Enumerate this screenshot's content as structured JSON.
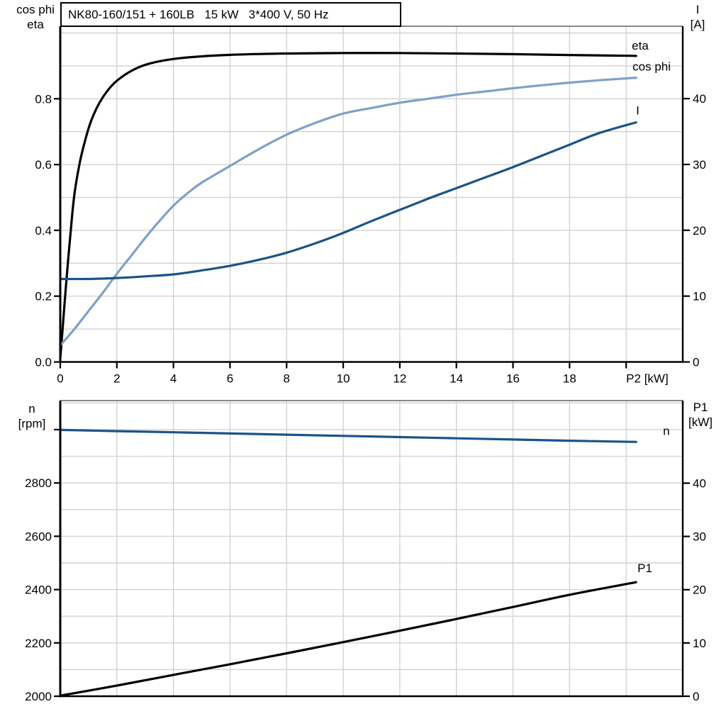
{
  "page": {
    "background": "#ffffff"
  },
  "title_box": {
    "text": "NK80-160/151 + 160LB   15 kW   3*400 V, 50 Hz"
  },
  "colors": {
    "black": "#000000",
    "light_blue": "#7fa1c6",
    "dark_blue": "#1a5488",
    "grid": "#d2d2d2",
    "frame_gray": "#888888",
    "axis": "#000000",
    "text": "#000000"
  },
  "chart_data": [
    {
      "id": "electrical-curves",
      "type": "line",
      "title": "NK80-160/151 + 160LB   15 kW   3*400 V, 50 Hz",
      "x_axis": {
        "label": "P2 [kW]",
        "range": [
          0,
          22.0
        ],
        "tick_values": [
          0,
          2,
          4,
          6,
          8,
          10,
          12,
          14,
          16,
          18
        ],
        "tick_labels": [
          "0",
          "2",
          "4",
          "6",
          "8",
          "10",
          "12",
          "14",
          "16",
          "18"
        ],
        "extra_tick_values": [
          20
        ],
        "grid_values": [
          2,
          4,
          6,
          8,
          10,
          12,
          14,
          16,
          18,
          20
        ],
        "label_at_value": 20
      },
      "left_axis": {
        "label_lines": [
          "cos phi",
          "eta"
        ],
        "range": [
          0,
          1.0205
        ],
        "tick_values": [
          0,
          0.2,
          0.4,
          0.6,
          0.8
        ],
        "tick_labels": [
          "0.0",
          "0.2",
          "0.4",
          "0.6",
          "0.8"
        ],
        "extra_tick_values": [],
        "grid_values": [
          0.1,
          0.2,
          0.3,
          0.4,
          0.5,
          0.6,
          0.7,
          0.8,
          0.9,
          1.0
        ]
      },
      "right_axis": {
        "label_lines": [
          "I",
          "[A]"
        ],
        "range": [
          0,
          51.0
        ],
        "tick_values": [
          0,
          10,
          20,
          30,
          40
        ],
        "tick_labels": [
          "0",
          "10",
          "20",
          "30",
          "40"
        ],
        "extra_tick_values": []
      },
      "series": [
        {
          "name": "eta",
          "axis": "left",
          "color": "black",
          "label_offset": [
            -6,
            -9
          ],
          "points": [
            [
              0,
              0.01
            ],
            [
              0.1,
              0.12
            ],
            [
              0.2,
              0.23
            ],
            [
              0.35,
              0.38
            ],
            [
              0.5,
              0.51
            ],
            [
              0.7,
              0.61
            ],
            [
              0.9,
              0.68
            ],
            [
              1.1,
              0.735
            ],
            [
              1.4,
              0.79
            ],
            [
              1.8,
              0.838
            ],
            [
              2.2,
              0.868
            ],
            [
              2.7,
              0.893
            ],
            [
              3.2,
              0.908
            ],
            [
              4,
              0.921
            ],
            [
              5,
              0.929
            ],
            [
              6,
              0.9335
            ],
            [
              7,
              0.936
            ],
            [
              8,
              0.9375
            ],
            [
              10,
              0.939
            ],
            [
              12,
              0.939
            ],
            [
              14,
              0.9375
            ],
            [
              16,
              0.9355
            ],
            [
              18,
              0.933
            ],
            [
              20.35,
              0.9305
            ]
          ]
        },
        {
          "name": "cos phi",
          "axis": "left",
          "color": "light_blue",
          "label_offset": [
            -5,
            -10
          ],
          "points": [
            [
              0,
              0.05
            ],
            [
              0.5,
              0.1
            ],
            [
              1,
              0.155
            ],
            [
              1.5,
              0.21
            ],
            [
              2,
              0.268
            ],
            [
              2.5,
              0.322
            ],
            [
              3,
              0.377
            ],
            [
              3.5,
              0.428
            ],
            [
              4,
              0.475
            ],
            [
              4.5,
              0.513
            ],
            [
              5,
              0.545
            ],
            [
              6,
              0.596
            ],
            [
              7,
              0.646
            ],
            [
              8,
              0.691
            ],
            [
              9,
              0.726
            ],
            [
              10,
              0.755
            ],
            [
              11,
              0.772
            ],
            [
              12,
              0.788
            ],
            [
              13,
              0.8
            ],
            [
              14,
              0.812
            ],
            [
              15,
              0.822
            ],
            [
              16,
              0.832
            ],
            [
              17,
              0.841
            ],
            [
              18,
              0.849
            ],
            [
              19,
              0.856
            ],
            [
              20.35,
              0.864
            ]
          ]
        },
        {
          "name": "I",
          "axis": "right",
          "color": "dark_blue",
          "label_offset": [
            0,
            -11
          ],
          "points": [
            [
              0,
              12.6
            ],
            [
              1,
              12.6
            ],
            [
              2,
              12.75
            ],
            [
              3,
              13.0
            ],
            [
              4,
              13.3
            ],
            [
              5,
              13.9
            ],
            [
              6,
              14.6
            ],
            [
              7,
              15.5
            ],
            [
              8,
              16.6
            ],
            [
              9,
              18.0
            ],
            [
              10,
              19.6
            ],
            [
              11,
              21.4
            ],
            [
              12,
              23.1
            ],
            [
              13,
              24.8
            ],
            [
              14,
              26.4
            ],
            [
              15,
              28.0
            ],
            [
              16,
              29.6
            ],
            [
              17,
              31.3
            ],
            [
              18,
              33.0
            ],
            [
              19,
              34.7
            ],
            [
              20.35,
              36.4
            ]
          ]
        }
      ]
    },
    {
      "id": "speed-power-curves",
      "type": "line",
      "title": "",
      "x_axis": {
        "label": "",
        "range": [
          0,
          22.0
        ],
        "tick_values": [],
        "tick_labels": [],
        "extra_tick_values": [],
        "grid_values": [
          2,
          4,
          6,
          8,
          10,
          12,
          14,
          16,
          18,
          20
        ],
        "label_at_value": null
      },
      "left_axis": {
        "label_lines": [
          "n",
          "[rpm]"
        ],
        "range": [
          2000,
          3109
        ],
        "tick_values": [
          2000,
          2200,
          2400,
          2600,
          2800
        ],
        "tick_labels": [
          "2000",
          "2200",
          "2400",
          "2600",
          "2800"
        ],
        "extra_tick_values": [
          3000
        ],
        "grid_values": [
          2100,
          2200,
          2300,
          2400,
          2500,
          2600,
          2700,
          2800,
          2900,
          3000,
          3100
        ]
      },
      "right_axis": {
        "label_lines": [
          "P1",
          "[kW]"
        ],
        "range": [
          0,
          55.5
        ],
        "tick_values": [
          0,
          10,
          20,
          30,
          40
        ],
        "tick_labels": [
          "0",
          "10",
          "20",
          "30",
          "40"
        ],
        "extra_tick_values": []
      },
      "series": [
        {
          "name": "n",
          "axis": "left",
          "color": "dark_blue",
          "label_offset": [
            38,
            -10
          ],
          "points": [
            [
              0,
              2999
            ],
            [
              2,
              2994.5
            ],
            [
              4,
              2990
            ],
            [
              6,
              2985.5
            ],
            [
              8,
              2981
            ],
            [
              10,
              2976.5
            ],
            [
              12,
              2972
            ],
            [
              14,
              2967.5
            ],
            [
              16,
              2963
            ],
            [
              18,
              2958.5
            ],
            [
              20.35,
              2954
            ]
          ]
        },
        {
          "name": "P1",
          "axis": "right",
          "color": "black",
          "label_offset": [
            2,
            -14
          ],
          "points": [
            [
              0,
              0.1
            ],
            [
              2,
              2.0
            ],
            [
              4,
              4.0
            ],
            [
              6,
              6.0
            ],
            [
              8,
              8.05
            ],
            [
              10,
              10.15
            ],
            [
              12,
              12.3
            ],
            [
              14,
              14.5
            ],
            [
              16,
              16.75
            ],
            [
              18,
              19.05
            ],
            [
              20.35,
              21.4
            ]
          ]
        }
      ]
    }
  ]
}
